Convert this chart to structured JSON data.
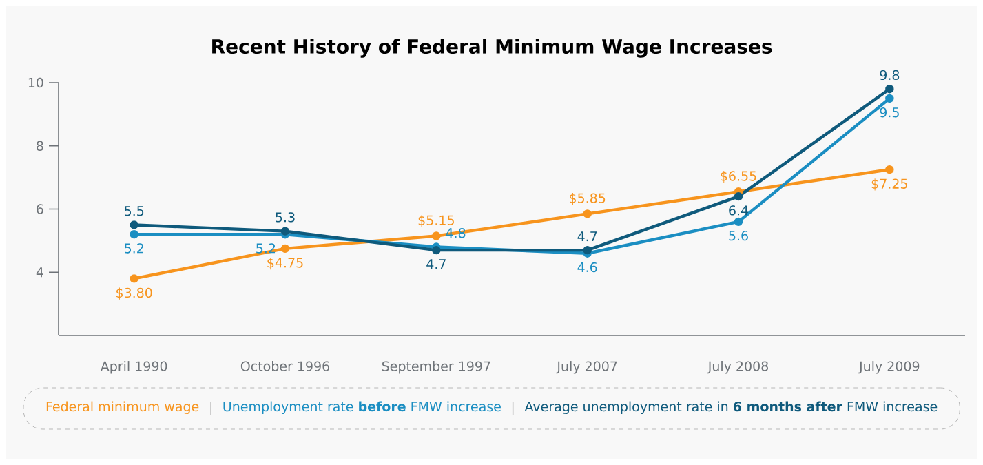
{
  "chart_data": {
    "type": "line",
    "title": "Recent History of Federal Minimum Wage Increases",
    "categories": [
      "April 1990",
      "October 1996",
      "September 1997",
      "July 2007",
      "July 2008",
      "July 2009"
    ],
    "series": [
      {
        "name": "Federal minimum wage",
        "color": "#f7941d",
        "values": [
          3.8,
          4.75,
          5.15,
          5.85,
          6.55,
          7.25
        ],
        "value_labels": [
          "$3.80",
          "$4.75",
          "$5.15",
          "$5.85",
          "$6.55",
          "$7.25"
        ]
      },
      {
        "name": "Unemployment rate **before** FMW increase",
        "color": "#1b8ec2",
        "values": [
          5.2,
          5.2,
          4.8,
          4.6,
          5.6,
          9.5
        ],
        "value_labels": [
          "5.2",
          "5.2",
          "4.8",
          "4.6",
          "5.6",
          "9.5"
        ]
      },
      {
        "name": "Average unemployment rate in **6 months after** FMW increase",
        "color": "#0f5a7c",
        "values": [
          5.5,
          5.3,
          4.7,
          4.7,
          6.4,
          9.8
        ],
        "value_labels": [
          "5.5",
          "5.3",
          "4.7",
          "4.7",
          "6.4",
          "9.8"
        ]
      }
    ],
    "ylim": [
      2,
      10
    ],
    "yticks": [
      4,
      6,
      8,
      10
    ],
    "grid": false,
    "legend": "bottom",
    "marker": "circle",
    "line_style": "solid"
  }
}
